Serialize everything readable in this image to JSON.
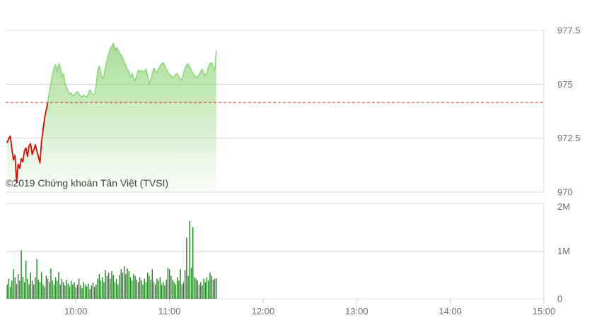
{
  "credit": "©2019 Chứng khoán Tân Việt (TVSI)",
  "colors": {
    "background": "#ffffff",
    "grid": "#d9d9d9",
    "axis_text": "#6f6f6f",
    "credit_text": "#3f3f3f",
    "line_below_reference": "#db0700",
    "line_above_reference": "#8cd77a",
    "area_fill_green": "#7ecf64",
    "reference_line": "#c42222",
    "volume_bar": "#218321"
  },
  "chart_data": [
    {
      "type": "area",
      "panel": "price",
      "x_axis": {
        "start": "09:15",
        "end": "15:00",
        "tick_labels": [
          "10:00",
          "11:00",
          "12:00",
          "13:00",
          "14:00",
          "15:00"
        ],
        "tick_minutes_from_start": [
          45,
          105,
          165,
          225,
          285,
          345
        ],
        "total_minutes": 345
      },
      "y_axis": {
        "position": "right",
        "tick_labels": [
          "977.5",
          "975",
          "972.5",
          "970"
        ],
        "tick_values": [
          977.5,
          975,
          972.5,
          970
        ],
        "ylim": [
          970,
          977.5
        ]
      },
      "reference_value": 974.16,
      "grid": true,
      "legend": "none",
      "series": [
        {
          "name": "price",
          "start_minute": 1,
          "step_minutes": 1,
          "values": [
            972.3,
            972.5,
            972.6,
            972.0,
            971.5,
            971.7,
            970.45,
            971.3,
            971.1,
            971.55,
            971.4,
            971.9,
            972.05,
            971.65,
            972.15,
            972.25,
            971.75,
            971.95,
            972.2,
            971.9,
            971.65,
            971.35,
            972.35,
            972.9,
            973.45,
            973.8,
            974.16,
            974.6,
            975.05,
            975.45,
            975.75,
            975.9,
            975.55,
            975.95,
            975.8,
            975.35,
            975.5,
            975.05,
            974.85,
            974.7,
            974.55,
            974.6,
            974.45,
            974.5,
            974.6,
            974.65,
            974.55,
            974.45,
            974.4,
            974.5,
            974.45,
            974.4,
            974.55,
            974.75,
            974.6,
            974.5,
            974.55,
            974.9,
            975.65,
            975.85,
            975.55,
            975.25,
            975.4,
            975.8,
            976.1,
            976.4,
            976.65,
            976.75,
            976.9,
            976.55,
            976.7,
            976.6,
            976.45,
            976.35,
            976.2,
            976.05,
            975.85,
            975.7,
            975.6,
            975.3,
            975.5,
            975.3,
            975.15,
            975.4,
            975.65,
            975.6,
            975.65,
            975.55,
            975.6,
            975.7,
            975.4,
            975.0,
            975.2,
            975.5,
            975.75,
            975.6,
            975.55,
            975.7,
            975.85,
            975.95,
            976.0,
            975.85,
            975.7,
            975.55,
            975.45,
            975.4,
            975.3,
            975.35,
            975.45,
            975.5,
            975.35,
            975.25,
            975.2,
            975.5,
            975.75,
            975.9,
            975.95,
            975.8,
            975.65,
            975.5,
            975.4,
            975.35,
            975.3,
            975.45,
            975.6,
            975.7,
            975.5,
            975.4,
            975.55,
            975.8,
            975.95,
            976.0,
            975.8,
            975.65,
            976.55
          ]
        }
      ]
    },
    {
      "type": "bar",
      "panel": "volume",
      "y_axis": {
        "position": "right",
        "tick_labels": [
          "2M",
          "1M",
          "0"
        ],
        "tick_values": [
          2000,
          1000,
          0
        ],
        "ylim": [
          0,
          2000
        ],
        "unit": "thousands"
      },
      "grid": true,
      "legend": "none",
      "series": [
        {
          "name": "volume",
          "start_minute": 1,
          "step_minutes": 1,
          "values_thousands": [
            300,
            420,
            250,
            380,
            620,
            450,
            310,
            520,
            380,
            1020,
            460,
            350,
            800,
            420,
            300,
            550,
            380,
            300,
            450,
            830,
            400,
            350,
            560,
            300,
            250,
            480,
            420,
            350,
            640,
            380,
            300,
            450,
            380,
            560,
            300,
            420,
            350,
            280,
            400,
            320,
            260,
            380,
            300,
            350,
            240,
            300,
            420,
            280,
            220,
            350,
            300,
            260,
            320,
            200,
            280,
            340,
            250,
            300,
            420,
            520,
            380,
            450,
            350,
            600,
            480,
            550,
            420,
            580,
            500,
            350,
            420,
            300,
            500,
            620,
            550,
            680,
            520,
            640,
            580,
            450,
            380,
            520,
            480,
            400,
            350,
            450,
            380,
            300,
            420,
            350,
            550,
            480,
            400,
            620,
            350,
            300,
            420,
            380,
            450,
            300,
            350,
            280,
            400,
            650,
            620,
            480,
            400,
            350,
            300,
            450,
            380,
            620,
            300,
            350,
            600,
            1280,
            480,
            1630,
            650,
            1500,
            450,
            420,
            380,
            300,
            350,
            280,
            420,
            350,
            450,
            380,
            550,
            480,
            400,
            420,
            430
          ]
        }
      ]
    }
  ]
}
